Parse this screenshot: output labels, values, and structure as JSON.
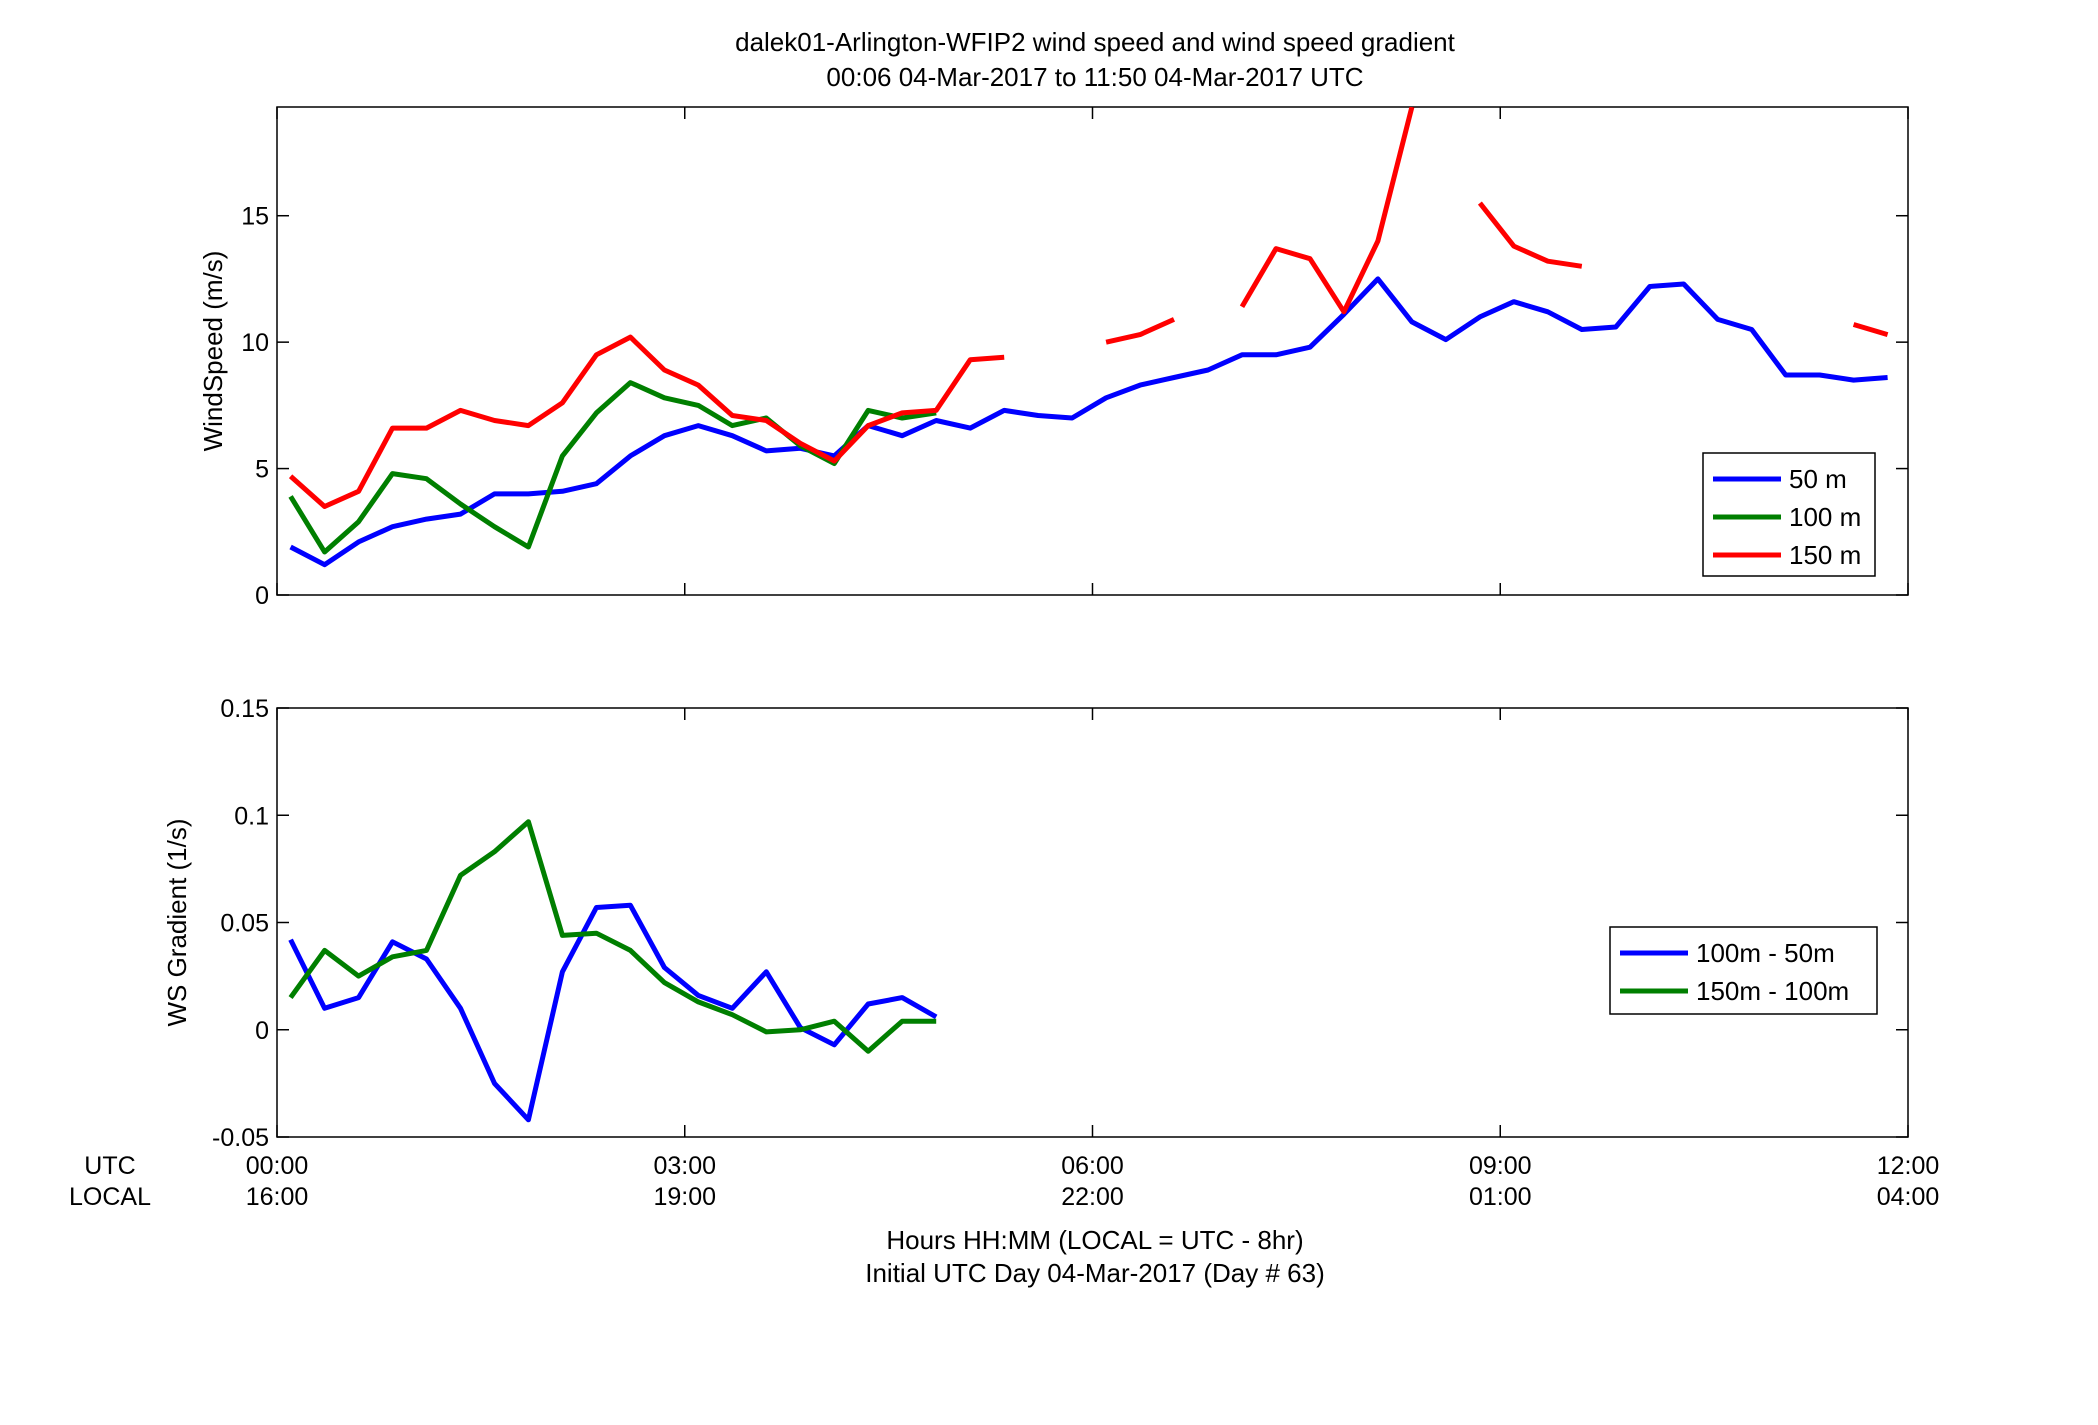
{
  "title_line1": "dalek01-Arlington-WFIP2  wind speed and wind speed gradient",
  "title_line2": "00:06 04-Mar-2017 to 11:50 04-Mar-2017  UTC",
  "row_labels": {
    "utc": "UTC",
    "local": "LOCAL"
  },
  "x_ticks_utc": [
    "00:00",
    "03:00",
    "06:00",
    "09:00",
    "12:00"
  ],
  "x_ticks_local": [
    "16:00",
    "19:00",
    "22:00",
    "01:00",
    "04:00"
  ],
  "xlabel_line1": "Hours HH:MM  (LOCAL = UTC - 8hr)",
  "xlabel_line2": "Initial UTC Day 04-Mar-2017 (Day # 63)",
  "chart_data": [
    {
      "type": "line",
      "ylabel": "WindSpeed (m/s)",
      "xlim": [
        0,
        12
      ],
      "ylim": [
        0,
        19.3
      ],
      "yticks": [
        0,
        5,
        10,
        15
      ],
      "ytick_labels": [
        "0",
        "5",
        "10",
        "15"
      ],
      "xticks": [
        0,
        3,
        6,
        9,
        12
      ],
      "grid": false,
      "legend_position": "lower-right",
      "series": [
        {
          "name": "50 m",
          "color": "#0000ff",
          "x": [
            0.1,
            0.35,
            0.6,
            0.85,
            1.1,
            1.35,
            1.6,
            1.85,
            2.1,
            2.35,
            2.6,
            2.85,
            3.1,
            3.35,
            3.6,
            3.85,
            4.1,
            4.35,
            4.6,
            4.85,
            5.1,
            5.35,
            5.6,
            5.85,
            6.1,
            6.35,
            6.6,
            6.85,
            7.1,
            7.35,
            7.6,
            7.85,
            8.1,
            8.35,
            8.6,
            8.85,
            9.1,
            9.35,
            9.6,
            9.85,
            10.1,
            10.35,
            10.6,
            10.85,
            11.1,
            11.35,
            11.6,
            11.85
          ],
          "y": [
            1.9,
            1.2,
            2.1,
            2.7,
            3.0,
            3.2,
            4.0,
            4.0,
            4.1,
            4.4,
            5.5,
            6.3,
            6.7,
            6.3,
            5.7,
            5.8,
            5.5,
            6.7,
            6.3,
            6.9,
            6.6,
            7.3,
            7.1,
            7.0,
            7.8,
            8.3,
            8.6,
            8.9,
            9.5,
            9.5,
            9.8,
            11.1,
            12.5,
            10.8,
            10.1,
            11.0,
            11.6,
            11.2,
            10.5,
            10.6,
            12.2,
            12.3,
            10.9,
            10.5,
            8.7,
            8.7,
            8.5,
            8.6
          ]
        },
        {
          "name": "100 m",
          "color": "#007f00",
          "x": [
            0.1,
            0.35,
            0.6,
            0.85,
            1.1,
            1.35,
            1.6,
            1.85,
            2.1,
            2.35,
            2.6,
            2.85,
            3.1,
            3.35,
            3.6,
            3.85,
            4.1,
            4.35,
            4.6,
            4.85
          ],
          "y": [
            3.9,
            1.7,
            2.9,
            4.8,
            4.6,
            3.6,
            2.7,
            1.9,
            5.5,
            7.2,
            8.4,
            7.8,
            7.5,
            6.7,
            7.0,
            5.9,
            5.2,
            7.3,
            7.0,
            7.2
          ]
        },
        {
          "name": "150 m",
          "color": "#ff0000",
          "x": [
            0.1,
            0.35,
            0.6,
            0.85,
            1.1,
            1.35,
            1.6,
            1.85,
            2.1,
            2.35,
            2.6,
            2.85,
            3.1,
            3.35,
            3.6,
            3.85,
            4.1,
            4.35,
            4.6,
            4.85,
            5.1,
            5.35,
            null,
            6.1,
            6.35,
            6.6,
            null,
            7.1,
            7.35,
            7.6,
            7.85,
            8.1,
            8.35,
            null,
            8.85,
            9.1,
            9.35,
            9.6,
            null,
            11.6,
            11.85
          ],
          "y": [
            4.7,
            3.5,
            4.1,
            6.6,
            6.6,
            7.3,
            6.9,
            6.7,
            7.6,
            9.5,
            10.2,
            8.9,
            8.3,
            7.1,
            6.9,
            6.0,
            5.3,
            6.7,
            7.2,
            7.3,
            9.3,
            9.4,
            null,
            10.0,
            10.3,
            10.9,
            null,
            11.4,
            13.7,
            13.3,
            11.2,
            14.0,
            19.3,
            null,
            15.5,
            13.8,
            13.2,
            13.0,
            null,
            10.7,
            10.3
          ]
        }
      ]
    },
    {
      "type": "line",
      "ylabel": "WS Gradient (1/s)",
      "xlim": [
        0,
        12
      ],
      "ylim": [
        -0.05,
        0.15
      ],
      "yticks": [
        -0.05,
        0,
        0.05,
        0.1,
        0.15
      ],
      "ytick_labels": [
        "-0.05",
        "0",
        "0.05",
        "0.1",
        "0.15"
      ],
      "xticks": [
        0,
        3,
        6,
        9,
        12
      ],
      "grid": false,
      "legend_position": "right",
      "series": [
        {
          "name": "100m - 50m",
          "color": "#0000ff",
          "x": [
            0.1,
            0.35,
            0.6,
            0.85,
            1.1,
            1.35,
            1.6,
            1.85,
            2.1,
            2.35,
            2.6,
            2.85,
            3.1,
            3.35,
            3.6,
            3.85,
            4.1,
            4.35,
            4.6,
            4.85
          ],
          "y": [
            0.042,
            0.01,
            0.015,
            0.041,
            0.033,
            0.01,
            -0.025,
            -0.042,
            0.027,
            0.057,
            0.058,
            0.029,
            0.016,
            0.01,
            0.027,
            0.001,
            -0.007,
            0.012,
            0.015,
            0.006
          ]
        },
        {
          "name": "150m - 100m",
          "color": "#007f00",
          "x": [
            0.1,
            0.35,
            0.6,
            0.85,
            1.1,
            1.35,
            1.6,
            1.85,
            2.1,
            2.35,
            2.6,
            2.85,
            3.1,
            3.35,
            3.6,
            3.85,
            4.1,
            4.35,
            4.6,
            4.85
          ],
          "y": [
            0.015,
            0.037,
            0.025,
            0.034,
            0.037,
            0.072,
            0.083,
            0.097,
            0.044,
            0.045,
            0.037,
            0.022,
            0.013,
            0.007,
            -0.001,
            0.0,
            0.004,
            -0.01,
            0.004,
            0.004
          ]
        }
      ]
    }
  ]
}
